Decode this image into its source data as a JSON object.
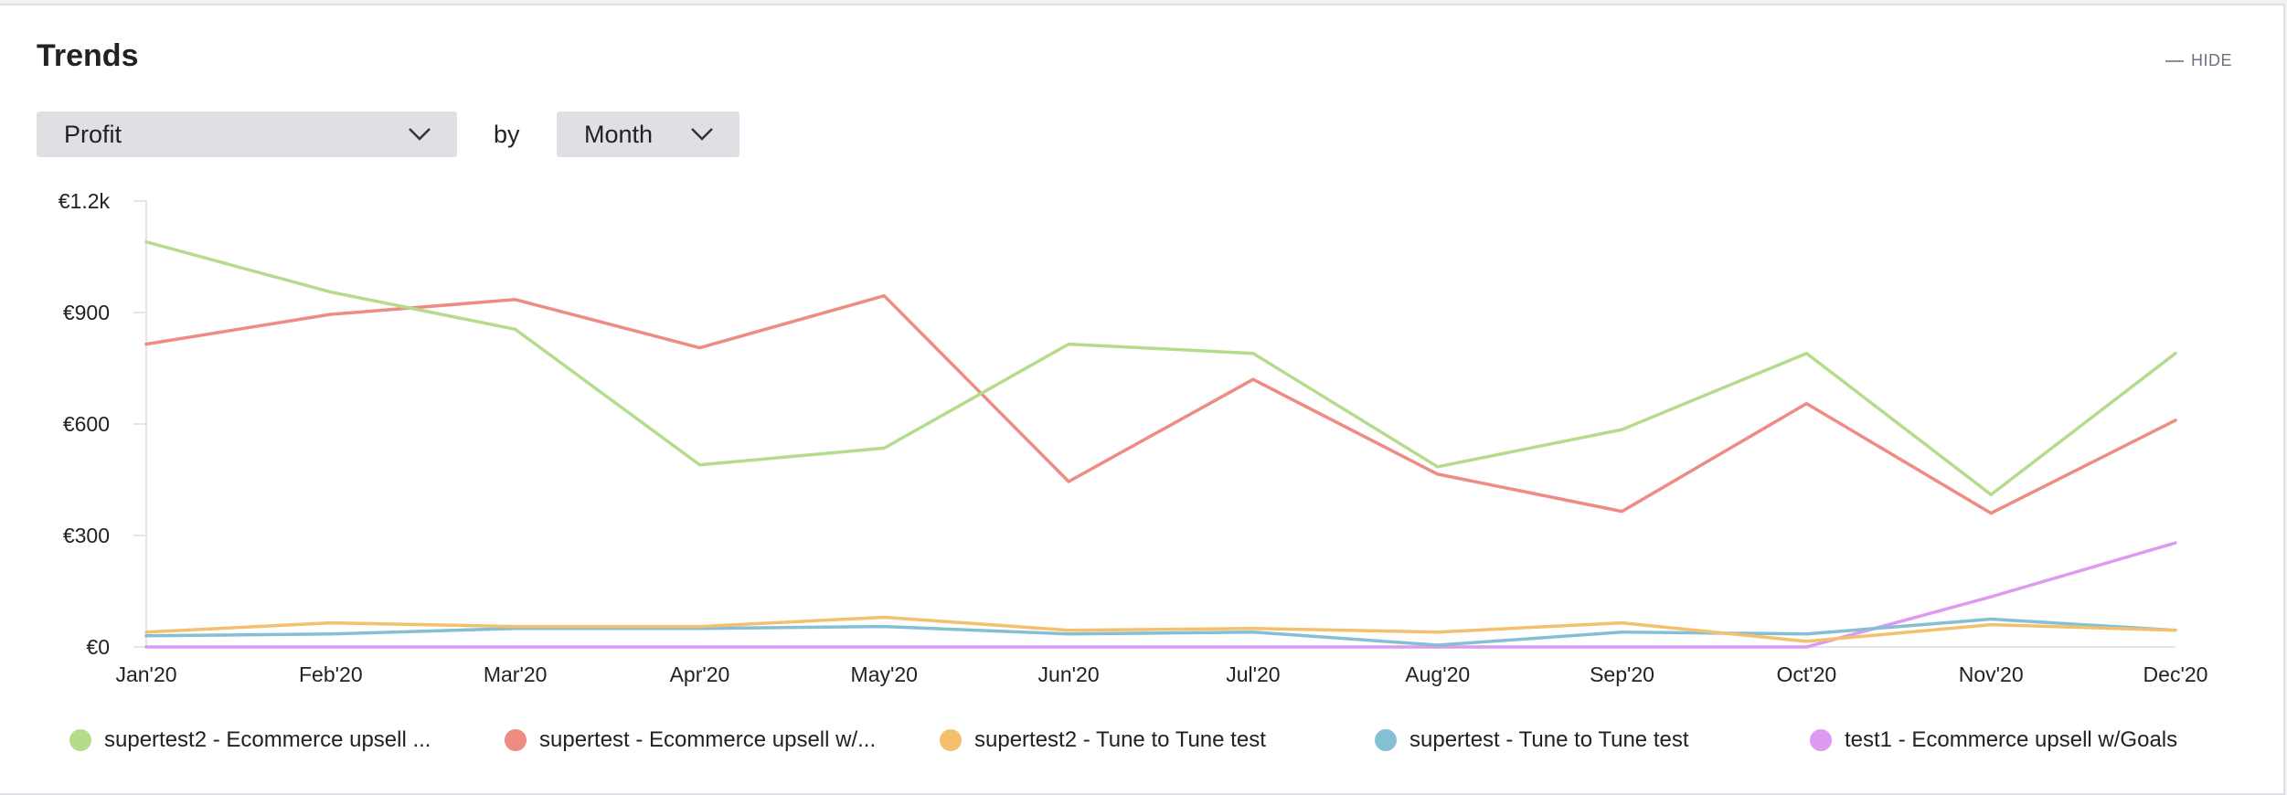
{
  "header": {
    "title": "Trends",
    "hide_label": "HIDE"
  },
  "controls": {
    "metric_value": "Profit",
    "by_label": "by",
    "period_value": "Month"
  },
  "icons": {
    "metric_chevron": "chevron-down-icon",
    "period_chevron": "chevron-down-icon"
  },
  "chart_data": {
    "type": "line",
    "title": "",
    "xlabel": "",
    "ylabel": "",
    "x": [
      "Jan'20",
      "Feb'20",
      "Mar'20",
      "Apr'20",
      "May'20",
      "Jun'20",
      "Jul'20",
      "Aug'20",
      "Sep'20",
      "Oct'20",
      "Nov'20",
      "Dec'20"
    ],
    "ylim": [
      0,
      1200
    ],
    "yticks": [
      0,
      300,
      600,
      900,
      1200
    ],
    "ytick_labels": [
      "€0",
      "€300",
      "€600",
      "€900",
      "€1.2k"
    ],
    "grid": false,
    "legend_position": "bottom",
    "series": [
      {
        "name": "supertest2 - Ecommerce upsell ...",
        "color": "#b5dc8d",
        "values": [
          1090,
          955,
          855,
          490,
          535,
          815,
          790,
          485,
          585,
          790,
          410,
          790
        ]
      },
      {
        "name": "supertest - Ecommerce upsell w/...",
        "color": "#ee8b82",
        "values": [
          815,
          895,
          935,
          805,
          945,
          445,
          720,
          465,
          365,
          655,
          360,
          610
        ]
      },
      {
        "name": "supertest2 - Tune to Tune test",
        "color": "#f2c06e",
        "values": [
          40,
          65,
          55,
          55,
          80,
          45,
          50,
          40,
          65,
          15,
          60,
          45
        ]
      },
      {
        "name": "supertest - Tune to Tune test",
        "color": "#85bfd4",
        "values": [
          30,
          35,
          50,
          50,
          55,
          35,
          40,
          5,
          40,
          35,
          75,
          45
        ]
      },
      {
        "name": "test1 - Ecommerce upsell w/Goals",
        "color": "#dc9af0",
        "values": [
          0,
          0,
          0,
          0,
          0,
          0,
          0,
          0,
          0,
          0,
          135,
          280
        ]
      }
    ]
  }
}
